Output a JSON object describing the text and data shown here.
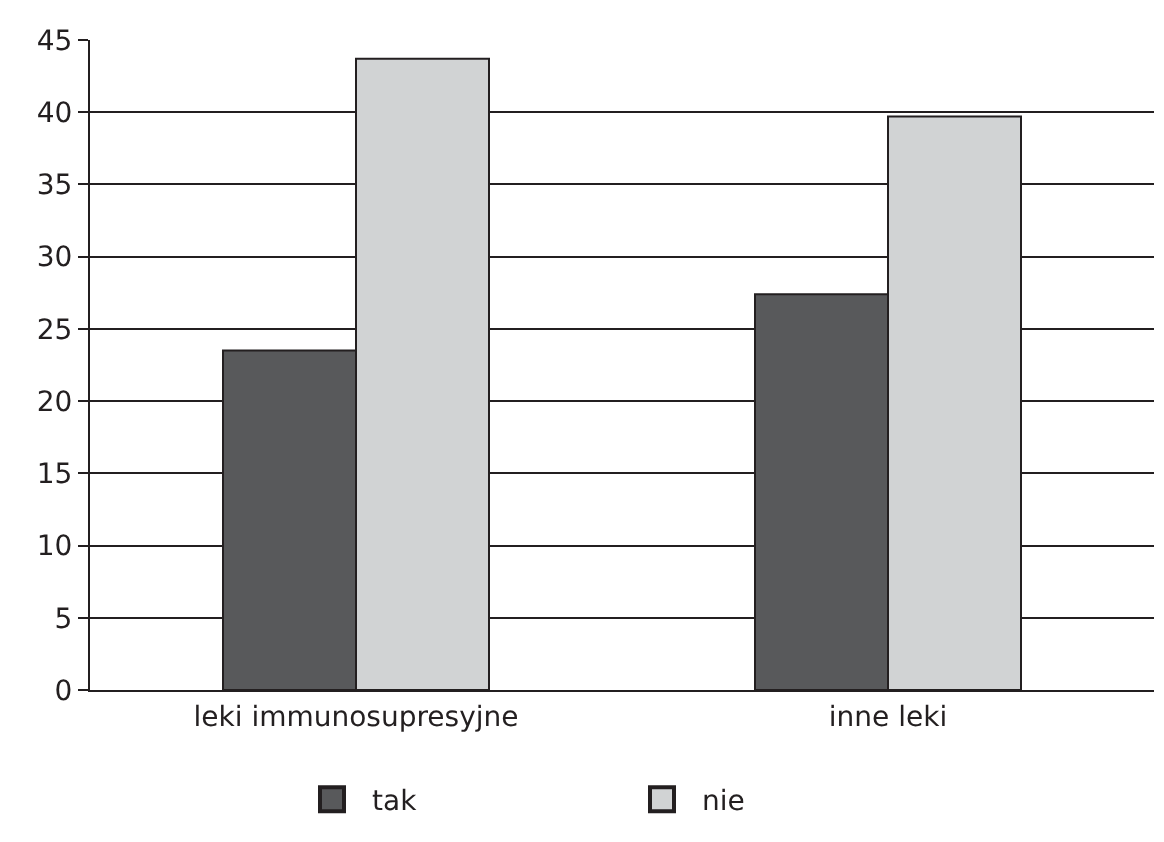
{
  "chart_data": {
    "type": "bar",
    "categories": [
      "leki immunosupresyjne",
      "inne leki"
    ],
    "series": [
      {
        "name": "tak",
        "color": "#58595b",
        "values": [
          23.5,
          27.4
        ]
      },
      {
        "name": "nie",
        "color": "#d1d3d4",
        "values": [
          43.7,
          39.7
        ]
      }
    ],
    "ylim": [
      0,
      45
    ],
    "yticks": [
      0,
      5,
      10,
      15,
      20,
      25,
      30,
      35,
      40,
      45
    ],
    "grid": "y",
    "legend": "bottom"
  }
}
